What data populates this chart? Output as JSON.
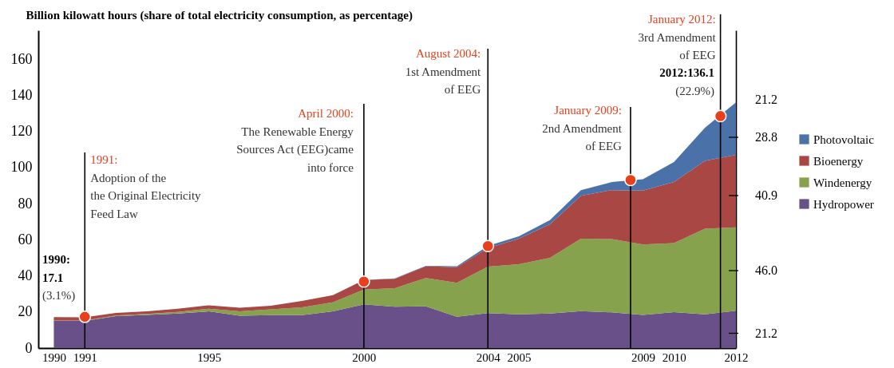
{
  "chart_data": {
    "type": "area",
    "ylabel": "Billion kilowatt hours (share of total electricity consumption, as percentage)",
    "x": [
      1990,
      1991,
      1992,
      1993,
      1994,
      1995,
      1996,
      1997,
      1998,
      1999,
      2000,
      2001,
      2002,
      2003,
      2004,
      2005,
      2006,
      2007,
      2008,
      2009,
      2010,
      2011,
      2012
    ],
    "xlim": [
      1989.5,
      2012
    ],
    "xticks": [
      1990,
      1991,
      1995,
      2000,
      2004,
      2005,
      2009,
      2010,
      2012
    ],
    "ylim": [
      0,
      176
    ],
    "yticks": [
      0,
      20,
      40,
      60,
      80,
      100,
      120,
      140,
      160
    ],
    "stacked": true,
    "legend": "right",
    "series": [
      {
        "name": "Hydropower",
        "color": "#6a5089",
        "values": [
          15.0,
          15.0,
          17.7,
          18.4,
          19.1,
          20.3,
          17.9,
          18.2,
          18.2,
          20.3,
          24.2,
          22.9,
          23.1,
          17.4,
          19.3,
          18.7,
          19.1,
          20.4,
          19.8,
          18.4,
          19.9,
          18.7,
          20.7
        ]
      },
      {
        "name": "Windenergy",
        "color": "#87a24c",
        "values": [
          0.3,
          0.3,
          0.3,
          0.5,
          0.9,
          1.5,
          2.4,
          3.2,
          4.4,
          5.0,
          8.2,
          10.3,
          15.7,
          18.7,
          25.8,
          27.7,
          30.9,
          40.2,
          40.6,
          39.0,
          38.3,
          47.4,
          46.2
        ]
      },
      {
        "name": "Bioenergy",
        "color": "#a84744",
        "values": [
          1.8,
          1.7,
          1.5,
          1.4,
          1.8,
          1.9,
          2.0,
          2.0,
          3.5,
          4.0,
          5.3,
          5.2,
          6.5,
          8.7,
          10.3,
          14.2,
          18.5,
          23.7,
          27.1,
          29.8,
          33.8,
          37.6,
          40.1
        ]
      },
      {
        "name": "Photovoltaic",
        "color": "#4a72a8",
        "values": [
          0,
          0,
          0,
          0,
          0,
          0,
          0,
          0,
          0,
          0,
          0,
          0.2,
          0.3,
          0.5,
          1.2,
          1.3,
          2.4,
          3.2,
          4.5,
          6.3,
          11.0,
          18.3,
          29.1
        ]
      },
      {
        "type": "scatter",
        "color": "#e8401c",
        "x": [
          1991,
          2000,
          2004,
          2008.6,
          2011.5
        ],
        "values": [
          17.3,
          36.8,
          56.5,
          93.1,
          128.5
        ]
      }
    ],
    "ref_lines": [
      {
        "axis": "x",
        "value": 1991,
        "label": "1991:\nAdoption of the\nthe Original Electricity\nFeed Law"
      },
      {
        "axis": "x",
        "value": 2000,
        "label": "April 2000:\nThe Renewable Energy\nSources Act (EEG)came\ninto force"
      },
      {
        "axis": "x",
        "value": 2004,
        "label": "August 2004:\n1st Amendment\nof EEG"
      },
      {
        "axis": "x",
        "value": 2008.6,
        "label": "January 2009:\n2nd Amendment\nof EEG"
      },
      {
        "axis": "x",
        "value": 2011.5,
        "label": "January 2012:\n3rd Amendment\nof EEG"
      }
    ],
    "annotations": [
      "1990:\n17.1\n(3.1%)",
      "2012:136.1\n(22.9%)",
      "21.2",
      "28.8",
      "40.9",
      "46.0",
      "21.2"
    ]
  }
}
